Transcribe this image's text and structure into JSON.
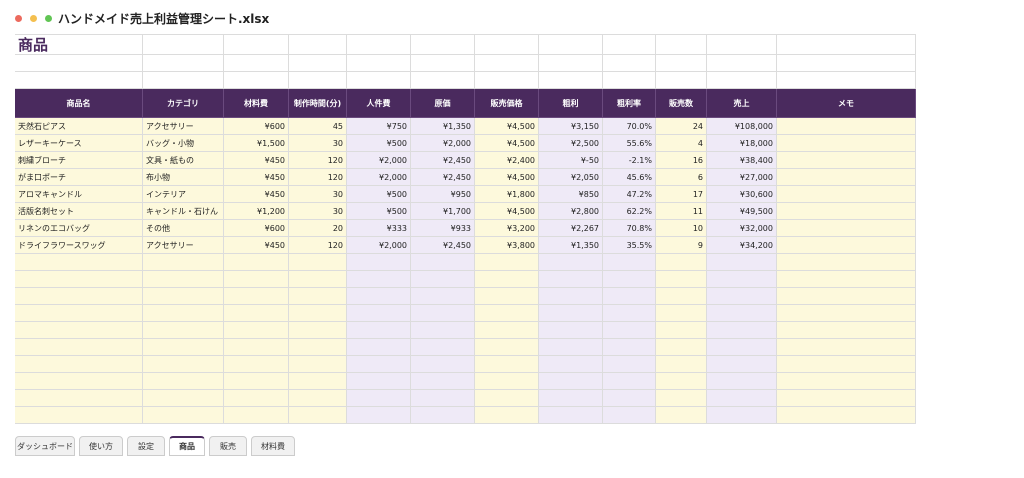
{
  "window": {
    "title": "ハンドメイド売上利益管理シート.xlsx"
  },
  "sheet": {
    "title": "商品",
    "columns": [
      "商品名",
      "カテゴリ",
      "材料費",
      "制作時間(分)",
      "人件費",
      "原価",
      "販売価格",
      "粗利",
      "粗利率",
      "販売数",
      "売上",
      "メモ"
    ],
    "rows": [
      [
        "天然石ピアス",
        "アクセサリー",
        "¥600",
        "45",
        "¥750",
        "¥1,350",
        "¥4,500",
        "¥3,150",
        "70.0%",
        "24",
        "¥108,000",
        ""
      ],
      [
        "レザーキーケース",
        "バッグ・小物",
        "¥1,500",
        "30",
        "¥500",
        "¥2,000",
        "¥4,500",
        "¥2,500",
        "55.6%",
        "4",
        "¥18,000",
        ""
      ],
      [
        "刺繍ブローチ",
        "文具・紙もの",
        "¥450",
        "120",
        "¥2,000",
        "¥2,450",
        "¥2,400",
        "¥-50",
        "-2.1%",
        "16",
        "¥38,400",
        ""
      ],
      [
        "がま口ポーチ",
        "布小物",
        "¥450",
        "120",
        "¥2,000",
        "¥2,450",
        "¥4,500",
        "¥2,050",
        "45.6%",
        "6",
        "¥27,000",
        ""
      ],
      [
        "アロマキャンドル",
        "インテリア",
        "¥450",
        "30",
        "¥500",
        "¥950",
        "¥1,800",
        "¥850",
        "47.2%",
        "17",
        "¥30,600",
        ""
      ],
      [
        "活版名刺セット",
        "キャンドル・石けん",
        "¥1,200",
        "30",
        "¥500",
        "¥1,700",
        "¥4,500",
        "¥2,800",
        "62.2%",
        "11",
        "¥49,500",
        ""
      ],
      [
        "リネンのエコバッグ",
        "その他",
        "¥600",
        "20",
        "¥333",
        "¥933",
        "¥3,200",
        "¥2,267",
        "70.8%",
        "10",
        "¥32,000",
        ""
      ],
      [
        "ドライフラワースワッグ",
        "アクセサリー",
        "¥450",
        "120",
        "¥2,000",
        "¥2,450",
        "¥3,800",
        "¥1,350",
        "35.5%",
        "9",
        "¥34,200",
        ""
      ]
    ]
  },
  "tabs": [
    "ダッシュボード",
    "使い方",
    "設定",
    "商品",
    "販売",
    "材料費"
  ]
}
